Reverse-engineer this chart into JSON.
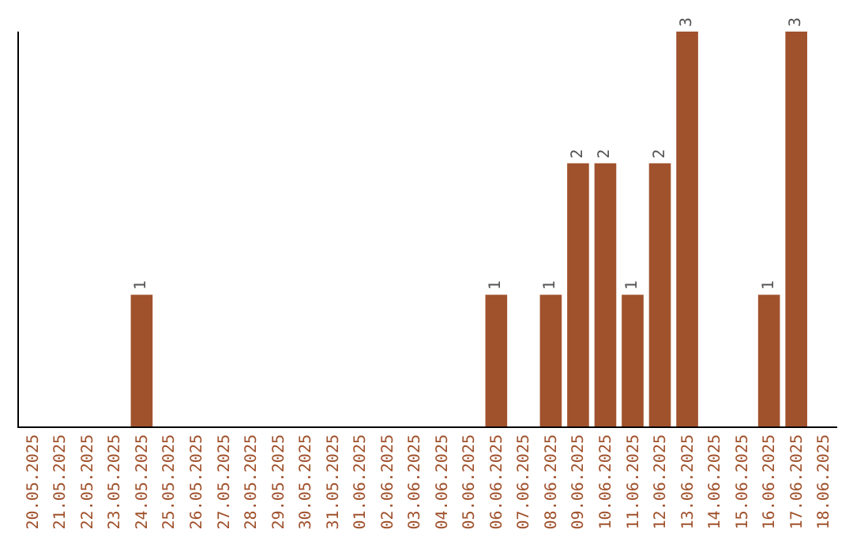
{
  "chart_data": {
    "type": "bar",
    "categories": [
      "20.05.2025",
      "21.05.2025",
      "22.05.2025",
      "23.05.2025",
      "24.05.2025",
      "25.05.2025",
      "26.05.2025",
      "27.05.2025",
      "28.05.2025",
      "29.05.2025",
      "30.05.2025",
      "31.05.2025",
      "01.06.2025",
      "02.06.2025",
      "03.06.2025",
      "04.06.2025",
      "05.06.2025",
      "06.06.2025",
      "07.06.2025",
      "08.06.2025",
      "09.06.2025",
      "10.06.2025",
      "11.06.2025",
      "12.06.2025",
      "13.06.2025",
      "14.06.2025",
      "15.06.2025",
      "16.06.2025",
      "17.06.2025",
      "18.06.2025"
    ],
    "values": [
      0,
      0,
      0,
      0,
      1,
      0,
      0,
      0,
      0,
      0,
      0,
      0,
      0,
      0,
      0,
      0,
      0,
      1,
      0,
      1,
      2,
      2,
      1,
      2,
      3,
      0,
      0,
      1,
      3,
      0
    ],
    "value_labels": [
      null,
      null,
      null,
      null,
      "1",
      null,
      null,
      null,
      null,
      null,
      null,
      null,
      null,
      null,
      null,
      null,
      null,
      "1",
      null,
      "1",
      "2",
      "2",
      "1",
      "2",
      "3",
      null,
      null,
      "1",
      "3",
      null
    ],
    "color": "#a0522d",
    "ylim": [
      0,
      3
    ],
    "tick_labels": "x"
  }
}
